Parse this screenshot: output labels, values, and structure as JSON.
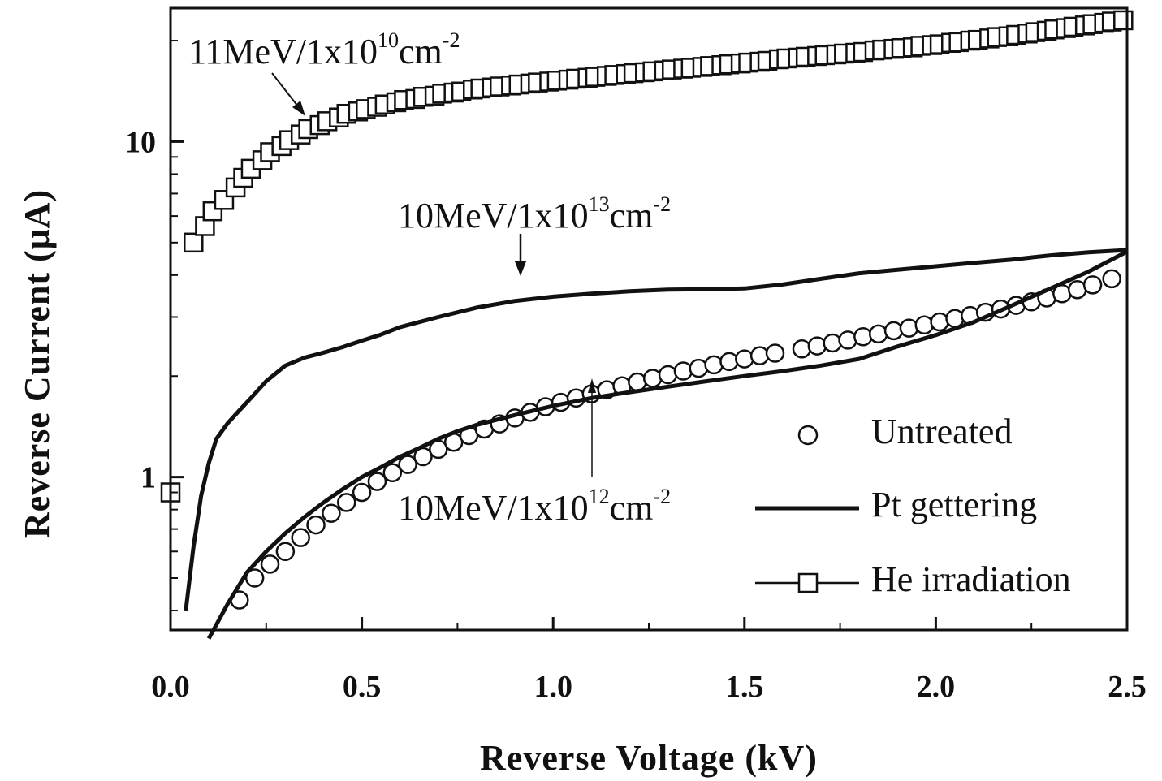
{
  "chart_data": {
    "type": "scatter",
    "title": "",
    "xlabel": "Reverse Voltage (kV)",
    "ylabel": "Reverse Current  (μA)",
    "xlim": [
      0,
      2.5
    ],
    "ylim": [
      0.35,
      25
    ],
    "y_scale": "log",
    "grid": false,
    "legend_position": "bottom-right",
    "x_ticks": [
      {
        "value": 0.0,
        "label": "0.0"
      },
      {
        "value": 0.5,
        "label": "0.5"
      },
      {
        "value": 1.0,
        "label": "1.0"
      },
      {
        "value": 1.5,
        "label": "1.5"
      },
      {
        "value": 2.0,
        "label": "2.0"
      },
      {
        "value": 2.5,
        "label": "2.5"
      }
    ],
    "y_ticks": [
      {
        "value": 1,
        "label": "1"
      },
      {
        "value": 10,
        "label": "10"
      }
    ],
    "legend": [
      {
        "name": "Untreated",
        "marker": "circle"
      },
      {
        "name": "Pt gettering",
        "marker": "line"
      },
      {
        "name": "He irradiation",
        "marker": "square-line"
      }
    ],
    "series": [
      {
        "name": "He irradiation",
        "style": "square-markers",
        "x": [
          0.0,
          0.06,
          0.09,
          0.11,
          0.14,
          0.17,
          0.19,
          0.21,
          0.24,
          0.26,
          0.29,
          0.31,
          0.34,
          0.36,
          0.39,
          0.41,
          0.44,
          0.46,
          0.49,
          0.51,
          0.54,
          0.56,
          0.59,
          0.61,
          0.64,
          0.66,
          0.69,
          0.71,
          0.74,
          0.76,
          0.79,
          0.81,
          0.84,
          0.86,
          0.89,
          0.91,
          0.94,
          0.96,
          0.99,
          1.01,
          1.04,
          1.06,
          1.09,
          1.11,
          1.14,
          1.16,
          1.19,
          1.21,
          1.24,
          1.26,
          1.29,
          1.31,
          1.34,
          1.36,
          1.39,
          1.41,
          1.44,
          1.46,
          1.49,
          1.51,
          1.54,
          1.56,
          1.59,
          1.61,
          1.64,
          1.66,
          1.69,
          1.71,
          1.74,
          1.76,
          1.79,
          1.81,
          1.84,
          1.86,
          1.89,
          1.91,
          1.94,
          1.96,
          1.99,
          2.01,
          2.04,
          2.06,
          2.09,
          2.11,
          2.14,
          2.16,
          2.19,
          2.21,
          2.24,
          2.26,
          2.29,
          2.31,
          2.34,
          2.36,
          2.39,
          2.41,
          2.44,
          2.46,
          2.49
        ],
        "y": [
          0.9,
          5.0,
          5.6,
          6.2,
          6.7,
          7.3,
          7.8,
          8.3,
          8.8,
          9.3,
          9.7,
          10.1,
          10.5,
          10.9,
          11.2,
          11.5,
          11.8,
          12.1,
          12.3,
          12.5,
          12.7,
          12.9,
          13.1,
          13.3,
          13.4,
          13.6,
          13.7,
          13.9,
          14.0,
          14.1,
          14.3,
          14.4,
          14.5,
          14.6,
          14.7,
          14.8,
          14.9,
          15.0,
          15.1,
          15.2,
          15.3,
          15.4,
          15.5,
          15.6,
          15.7,
          15.8,
          15.9,
          16.0,
          16.1,
          16.2,
          16.3,
          16.4,
          16.5,
          16.6,
          16.7,
          16.8,
          16.9,
          17.0,
          17.1,
          17.2,
          17.3,
          17.4,
          17.6,
          17.7,
          17.8,
          17.9,
          18.0,
          18.1,
          18.2,
          18.3,
          18.4,
          18.5,
          18.7,
          18.8,
          18.9,
          19.0,
          19.1,
          19.3,
          19.4,
          19.5,
          19.7,
          19.8,
          20.0,
          20.1,
          20.3,
          20.5,
          20.6,
          20.8,
          21.0,
          21.2,
          21.4,
          21.6,
          21.8,
          22.0,
          22.2,
          22.4,
          22.6,
          22.8,
          23.0
        ]
      },
      {
        "name": "Untreated",
        "style": "circle-markers",
        "x": [
          0.18,
          0.22,
          0.26,
          0.3,
          0.34,
          0.38,
          0.42,
          0.46,
          0.5,
          0.54,
          0.58,
          0.62,
          0.66,
          0.7,
          0.74,
          0.78,
          0.82,
          0.86,
          0.9,
          0.94,
          0.98,
          1.02,
          1.06,
          1.1,
          1.14,
          1.18,
          1.22,
          1.26,
          1.3,
          1.34,
          1.38,
          1.42,
          1.46,
          1.5,
          1.54,
          1.58,
          1.65,
          1.69,
          1.73,
          1.77,
          1.81,
          1.85,
          1.89,
          1.93,
          1.97,
          2.01,
          2.05,
          2.09,
          2.13,
          2.17,
          2.21,
          2.25,
          2.29,
          2.33,
          2.37,
          2.41,
          2.46
        ],
        "y": [
          0.43,
          0.5,
          0.55,
          0.6,
          0.66,
          0.72,
          0.78,
          0.84,
          0.9,
          0.97,
          1.03,
          1.09,
          1.15,
          1.21,
          1.27,
          1.33,
          1.39,
          1.44,
          1.5,
          1.56,
          1.62,
          1.67,
          1.72,
          1.77,
          1.82,
          1.87,
          1.92,
          1.97,
          2.02,
          2.07,
          2.11,
          2.16,
          2.21,
          2.25,
          2.3,
          2.34,
          2.41,
          2.46,
          2.51,
          2.56,
          2.62,
          2.67,
          2.73,
          2.78,
          2.84,
          2.9,
          2.97,
          3.03,
          3.1,
          3.17,
          3.25,
          3.33,
          3.42,
          3.52,
          3.62,
          3.74,
          3.9
        ]
      },
      {
        "name": "Pt gettering",
        "annotation_ref": 1,
        "style": "line",
        "x": [
          0.04,
          0.06,
          0.08,
          0.1,
          0.12,
          0.15,
          0.18,
          0.21,
          0.25,
          0.3,
          0.35,
          0.4,
          0.45,
          0.5,
          0.55,
          0.6,
          0.7,
          0.8,
          0.9,
          1.0,
          1.1,
          1.2,
          1.3,
          1.4,
          1.5,
          1.6,
          1.7,
          1.8,
          1.9,
          2.0,
          2.1,
          2.2,
          2.3,
          2.4,
          2.5
        ],
        "y": [
          0.4,
          0.62,
          0.88,
          1.1,
          1.3,
          1.45,
          1.58,
          1.72,
          1.93,
          2.15,
          2.27,
          2.35,
          2.44,
          2.55,
          2.66,
          2.8,
          3.0,
          3.2,
          3.35,
          3.45,
          3.52,
          3.58,
          3.62,
          3.63,
          3.65,
          3.75,
          3.9,
          4.05,
          4.15,
          4.25,
          4.35,
          4.45,
          4.58,
          4.68,
          4.75
        ]
      },
      {
        "name": "Pt gettering",
        "annotation_ref": 2,
        "style": "line",
        "x": [
          0.1,
          0.15,
          0.2,
          0.25,
          0.3,
          0.35,
          0.4,
          0.45,
          0.5,
          0.55,
          0.6,
          0.65,
          0.7,
          0.75,
          0.8,
          0.85,
          0.9,
          1.0,
          1.1,
          1.2,
          1.3,
          1.4,
          1.5,
          1.6,
          1.7,
          1.8,
          1.9,
          2.0,
          2.1,
          2.2,
          2.3,
          2.4,
          2.5
        ],
        "y": [
          0.33,
          0.42,
          0.52,
          0.6,
          0.68,
          0.76,
          0.84,
          0.92,
          1.0,
          1.07,
          1.15,
          1.22,
          1.3,
          1.37,
          1.43,
          1.48,
          1.53,
          1.63,
          1.72,
          1.79,
          1.86,
          1.93,
          2.0,
          2.07,
          2.15,
          2.25,
          2.45,
          2.65,
          2.9,
          3.25,
          3.65,
          4.1,
          4.7
        ]
      }
    ],
    "annotations": [
      {
        "base": "11MeV/1x10",
        "sup_exp": "10",
        "unit": "cm",
        "sup_unit": "-2"
      },
      {
        "base": "10MeV/1x10",
        "sup_exp": "13",
        "unit": "cm",
        "sup_unit": "-2"
      },
      {
        "base": "10MeV/1x10",
        "sup_exp": "12",
        "unit": "cm",
        "sup_unit": "-2"
      }
    ]
  }
}
